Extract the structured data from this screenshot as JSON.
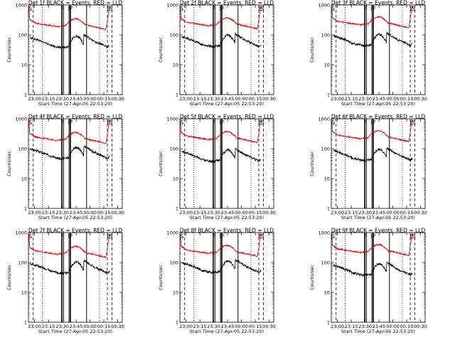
{
  "chart_data": [
    {
      "type": "line",
      "title": "Det 1f BLACK = Events, RED = LLD",
      "xlabel": "Start Time (27-Apr-05 22:53:20)",
      "ylabel": "Counts/sec",
      "yscale": "log",
      "ylim": [
        1,
        1000
      ],
      "x_ticks": [
        "23:00",
        "23:15",
        "23:30",
        "23:45",
        "00:00",
        "00:15",
        "00:30"
      ],
      "y_ticks": [
        "1",
        "10",
        "100",
        "1000"
      ],
      "markers": [
        "S",
        "F",
        "F",
        "F",
        "E",
        "S"
      ],
      "series": [
        {
          "name": "LLD",
          "color": "#dd0000",
          "profile": "lld"
        },
        {
          "name": "Events",
          "color": "#000000",
          "profile": "events"
        }
      ]
    },
    {
      "type": "line",
      "title": "Det 2f BLACK = Events, RED = LLD",
      "xlabel": "Start Time (27-Apr-05 22:53:20)",
      "ylabel": "Counts/sec",
      "yscale": "log",
      "ylim": [
        1,
        1000
      ],
      "x_ticks": [
        "23:00",
        "23:15",
        "23:30",
        "23:45",
        "00:00",
        "00:15",
        "00:30"
      ],
      "y_ticks": [
        "1",
        "10",
        "100",
        "1000"
      ],
      "markers": [
        "S",
        "F",
        "F",
        "F",
        "E",
        "S"
      ],
      "series": [
        {
          "name": "LLD",
          "color": "#dd0000",
          "profile": "lld"
        },
        {
          "name": "Events",
          "color": "#000000",
          "profile": "events"
        }
      ]
    },
    {
      "type": "line",
      "title": "Det 3f BLACK = Events, RED = LLD",
      "xlabel": "Start Time (27-Apr-05 22:53:20)",
      "ylabel": "Counts/sec",
      "yscale": "log",
      "ylim": [
        1,
        1000
      ],
      "x_ticks": [
        "23:00",
        "23:15",
        "23:30",
        "23:45",
        "00:00",
        "00:15",
        "00:30"
      ],
      "y_ticks": [
        "1",
        "10",
        "100",
        "1000"
      ],
      "markers": [
        "S",
        "F",
        "F",
        "F",
        "E",
        "S"
      ],
      "series": [
        {
          "name": "LLD",
          "color": "#dd0000",
          "profile": "lld"
        },
        {
          "name": "Events",
          "color": "#000000",
          "profile": "events"
        }
      ]
    },
    {
      "type": "line",
      "title": "Det 4f BLACK = Events, RED = LLD",
      "xlabel": "Start Time (27-Apr-05 22:53:20)",
      "ylabel": "Counts/sec",
      "yscale": "log",
      "ylim": [
        1,
        1000
      ],
      "x_ticks": [
        "23:00",
        "23:15",
        "23:30",
        "23:45",
        "00:00",
        "00:15",
        "00:30"
      ],
      "y_ticks": [
        "1",
        "10",
        "100",
        "1000"
      ],
      "markers": [
        "S",
        "F",
        "F",
        "F",
        "E",
        "S"
      ],
      "series": [
        {
          "name": "LLD",
          "color": "#dd0000",
          "profile": "lld"
        },
        {
          "name": "Events",
          "color": "#000000",
          "profile": "events"
        }
      ]
    },
    {
      "type": "line",
      "title": "Det 5f BLACK = Events, RED = LLD",
      "xlabel": "Start Time (27-Apr-05 22:53:20)",
      "ylabel": "Counts/sec",
      "yscale": "log",
      "ylim": [
        1,
        1000
      ],
      "x_ticks": [
        "23:00",
        "23:15",
        "23:30",
        "23:45",
        "00:00",
        "00:15",
        "00:30"
      ],
      "y_ticks": [
        "1",
        "10",
        "100",
        "1000"
      ],
      "markers": [
        "S",
        "F",
        "F",
        "F",
        "E",
        "S"
      ],
      "series": [
        {
          "name": "LLD",
          "color": "#dd0000",
          "profile": "lld"
        },
        {
          "name": "Events",
          "color": "#000000",
          "profile": "events"
        }
      ]
    },
    {
      "type": "line",
      "title": "Det 6f BLACK = Events, RED = LLD",
      "xlabel": "Start Time (27-Apr-05 22:53:20)",
      "ylabel": "Counts/sec",
      "yscale": "log",
      "ylim": [
        1,
        1000
      ],
      "x_ticks": [
        "23:00",
        "23:15",
        "23:30",
        "23:45",
        "00:00",
        "00:15",
        "00:30"
      ],
      "y_ticks": [
        "1",
        "10",
        "100",
        "1000"
      ],
      "markers": [
        "S",
        "F",
        "F",
        "F",
        "E",
        "S"
      ],
      "series": [
        {
          "name": "LLD",
          "color": "#dd0000",
          "profile": "lld"
        },
        {
          "name": "Events",
          "color": "#000000",
          "profile": "events"
        }
      ]
    },
    {
      "type": "line",
      "title": "Det 7f BLACK = Events, RED = LLD",
      "xlabel": "Start Time (27-Apr-05 22:53:20)",
      "ylabel": "Counts/sec",
      "yscale": "log",
      "ylim": [
        1,
        1000
      ],
      "x_ticks": [
        "23:00",
        "23:15",
        "23:30",
        "23:45",
        "00:00",
        "00:15",
        "00:30"
      ],
      "y_ticks": [
        "1",
        "10",
        "100",
        "1000"
      ],
      "markers": [
        "S",
        "F",
        "F",
        "F",
        "E",
        "S"
      ],
      "series": [
        {
          "name": "LLD",
          "color": "#dd0000",
          "profile": "lld"
        },
        {
          "name": "Events",
          "color": "#000000",
          "profile": "events"
        }
      ]
    },
    {
      "type": "line",
      "title": "Det 8f BLACK = Events, RED = LLD",
      "xlabel": "Start Time (27-Apr-05 22:53:20)",
      "ylabel": "Counts/sec",
      "yscale": "log",
      "ylim": [
        1,
        1000
      ],
      "x_ticks": [
        "23:00",
        "23:15",
        "23:30",
        "23:45",
        "00:00",
        "00:15",
        "00:30"
      ],
      "y_ticks": [
        "1",
        "10",
        "100",
        "1000"
      ],
      "markers": [
        "S",
        "F",
        "F",
        "F",
        "E",
        "S"
      ],
      "series": [
        {
          "name": "LLD",
          "color": "#dd0000",
          "profile": "lld"
        },
        {
          "name": "Events",
          "color": "#000000",
          "profile": "events"
        }
      ]
    },
    {
      "type": "line",
      "title": "Det 9f BLACK = Events, RED = LLD",
      "xlabel": "Start Time (27-Apr-05 22:53:20)",
      "ylabel": "Counts/sec",
      "yscale": "log",
      "ylim": [
        1,
        1000
      ],
      "x_ticks": [
        "23:00",
        "23:15",
        "23:30",
        "23:45",
        "00:00",
        "00:15",
        "00:30"
      ],
      "y_ticks": [
        "1",
        "10",
        "100",
        "1000"
      ],
      "markers": [
        "S",
        "F",
        "F",
        "F",
        "E",
        "S"
      ],
      "series": [
        {
          "name": "LLD",
          "color": "#dd0000",
          "profile": "lld"
        },
        {
          "name": "Events",
          "color": "#000000",
          "profile": "events"
        }
      ]
    }
  ]
}
